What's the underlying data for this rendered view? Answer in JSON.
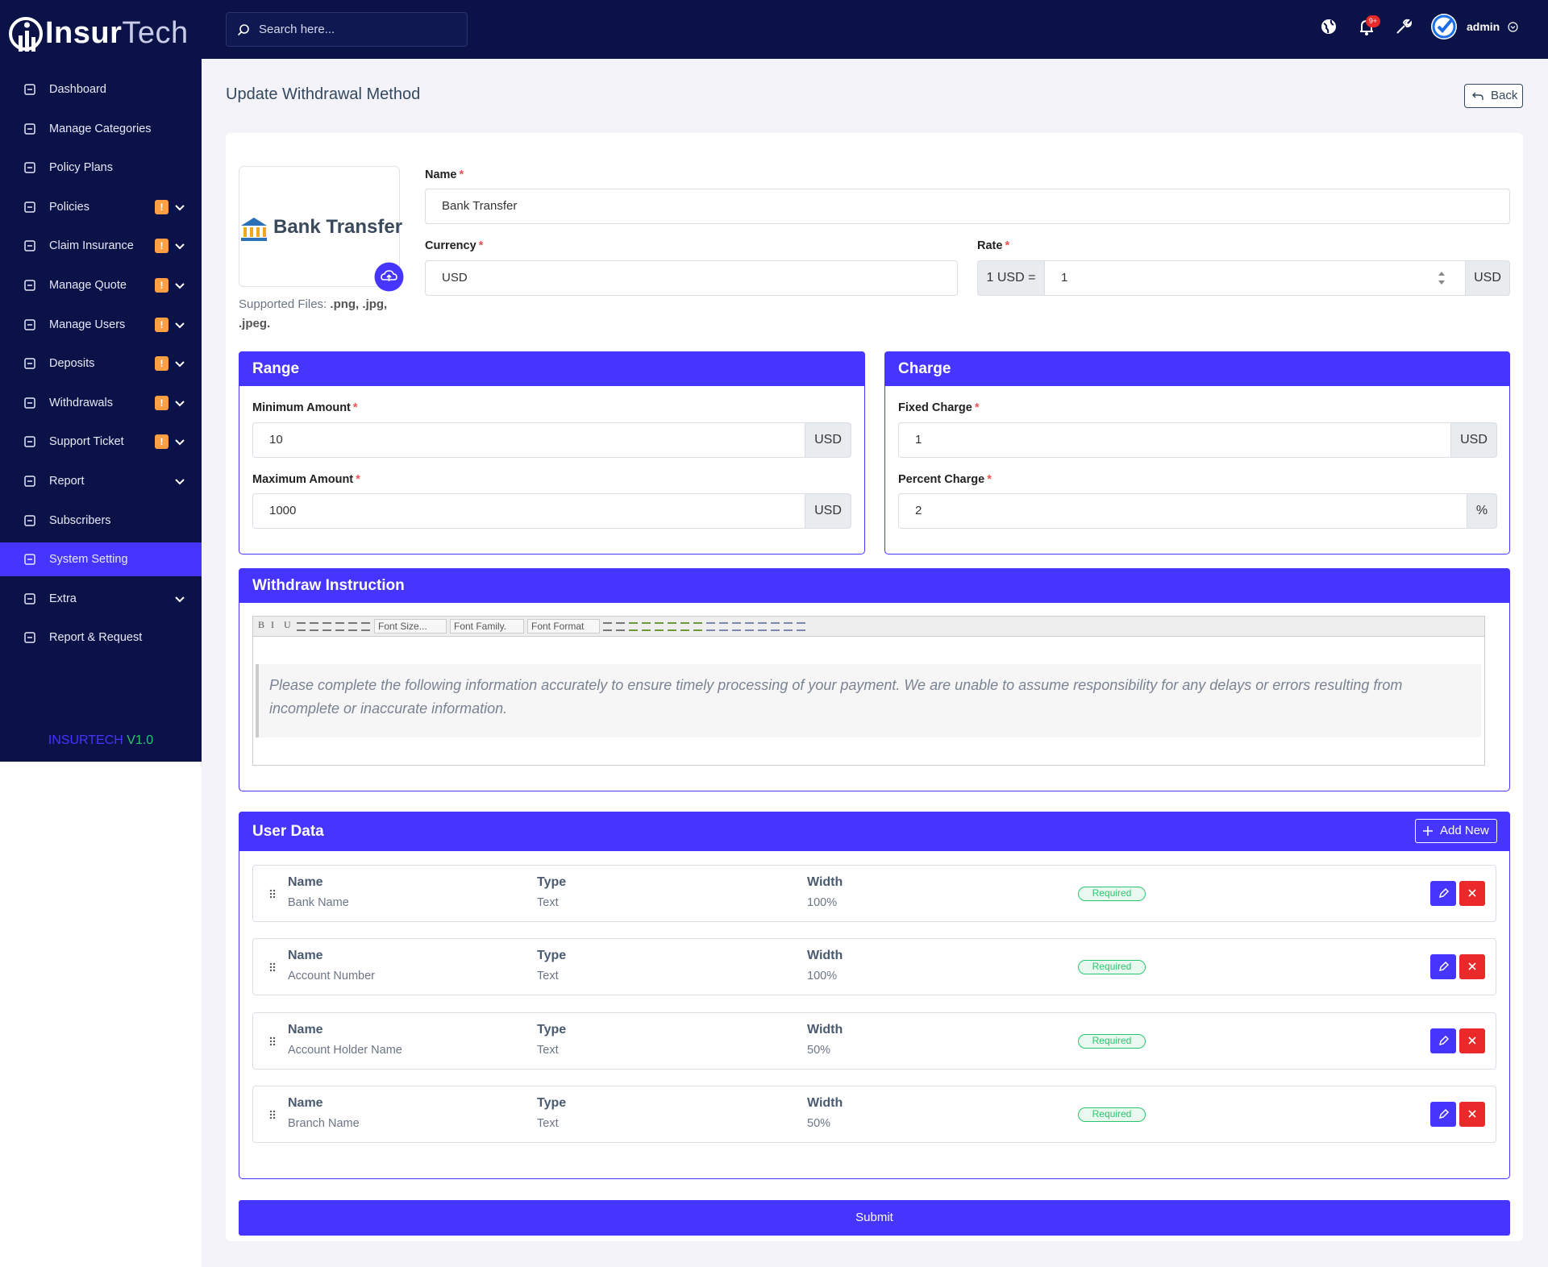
{
  "brand": {
    "first": "Insur",
    "second": "Tech"
  },
  "header": {
    "search_placeholder": "Search here...",
    "notification_count": "9+",
    "user": "admin"
  },
  "sidebar": {
    "items": [
      {
        "label": "Dashboard"
      },
      {
        "label": "Manage Categories"
      },
      {
        "label": "Policy Plans"
      },
      {
        "label": "Policies",
        "badge": "!",
        "dropdown": true
      },
      {
        "label": "Claim Insurance",
        "badge": "!",
        "dropdown": true
      },
      {
        "label": "Manage Quote",
        "badge": "!",
        "dropdown": true
      },
      {
        "label": "Manage Users",
        "badge": "!",
        "dropdown": true
      },
      {
        "label": "Deposits",
        "badge": "!",
        "dropdown": true
      },
      {
        "label": "Withdrawals",
        "badge": "!",
        "dropdown": true
      },
      {
        "label": "Support Ticket",
        "badge": "!",
        "dropdown": true
      },
      {
        "label": "Report",
        "dropdown": true
      },
      {
        "label": "Subscribers"
      },
      {
        "label": "System Setting",
        "active": true
      },
      {
        "label": "Extra",
        "dropdown": true
      },
      {
        "label": "Report & Request"
      }
    ],
    "version": {
      "name": "INSURTECH",
      "number": "V1.0"
    }
  },
  "page": {
    "title": "Update Withdrawal Method",
    "back": "Back"
  },
  "required_mark": "*",
  "image": {
    "logo_text": "Bank Transfer",
    "supported_label": "Supported Files:",
    "supported_types": ".png, .jpg, .jpeg."
  },
  "form": {
    "name": {
      "label": "Name",
      "value": "Bank Transfer"
    },
    "currency": {
      "label": "Currency",
      "value": "USD"
    },
    "rate": {
      "label": "Rate",
      "prefix": "1 USD =",
      "value": "1",
      "suffix": "USD"
    }
  },
  "range": {
    "title": "Range",
    "minimum": {
      "label": "Minimum Amount",
      "value": "10",
      "suffix": "USD"
    },
    "maximum": {
      "label": "Maximum Amount",
      "value": "1000",
      "suffix": "USD"
    }
  },
  "charge": {
    "title": "Charge",
    "fixed": {
      "label": "Fixed Charge",
      "value": "1",
      "suffix": "USD"
    },
    "percent": {
      "label": "Percent Charge",
      "value": "2",
      "suffix": "%"
    }
  },
  "instruction": {
    "title": "Withdraw Instruction",
    "format_buttons": [
      "B",
      "I",
      "U"
    ],
    "dropdowns": [
      "Font Size...",
      "Font Family.",
      "Font Format"
    ],
    "text": "Please complete the following information accurately to ensure timely processing of your payment. We are unable to assume responsibility for any delays or errors resulting from incomplete or inaccurate information."
  },
  "user_data": {
    "title": "User Data",
    "add_new": "Add New",
    "fields": [
      {
        "name_label": "Name",
        "name": "Bank Name",
        "type_label": "Type",
        "type": "Text",
        "width_label": "Width",
        "width": "100%",
        "status": "Required"
      },
      {
        "name_label": "Name",
        "name": "Account Number",
        "type_label": "Type",
        "type": "Text",
        "width_label": "Width",
        "width": "100%",
        "status": "Required"
      },
      {
        "name_label": "Name",
        "name": "Account Holder Name",
        "type_label": "Type",
        "type": "Text",
        "width_label": "Width",
        "width": "50%",
        "status": "Required"
      },
      {
        "name_label": "Name",
        "name": "Branch Name",
        "type_label": "Type",
        "type": "Text",
        "width_label": "Width",
        "width": "50%",
        "status": "Required"
      }
    ]
  },
  "submit": "Submit"
}
